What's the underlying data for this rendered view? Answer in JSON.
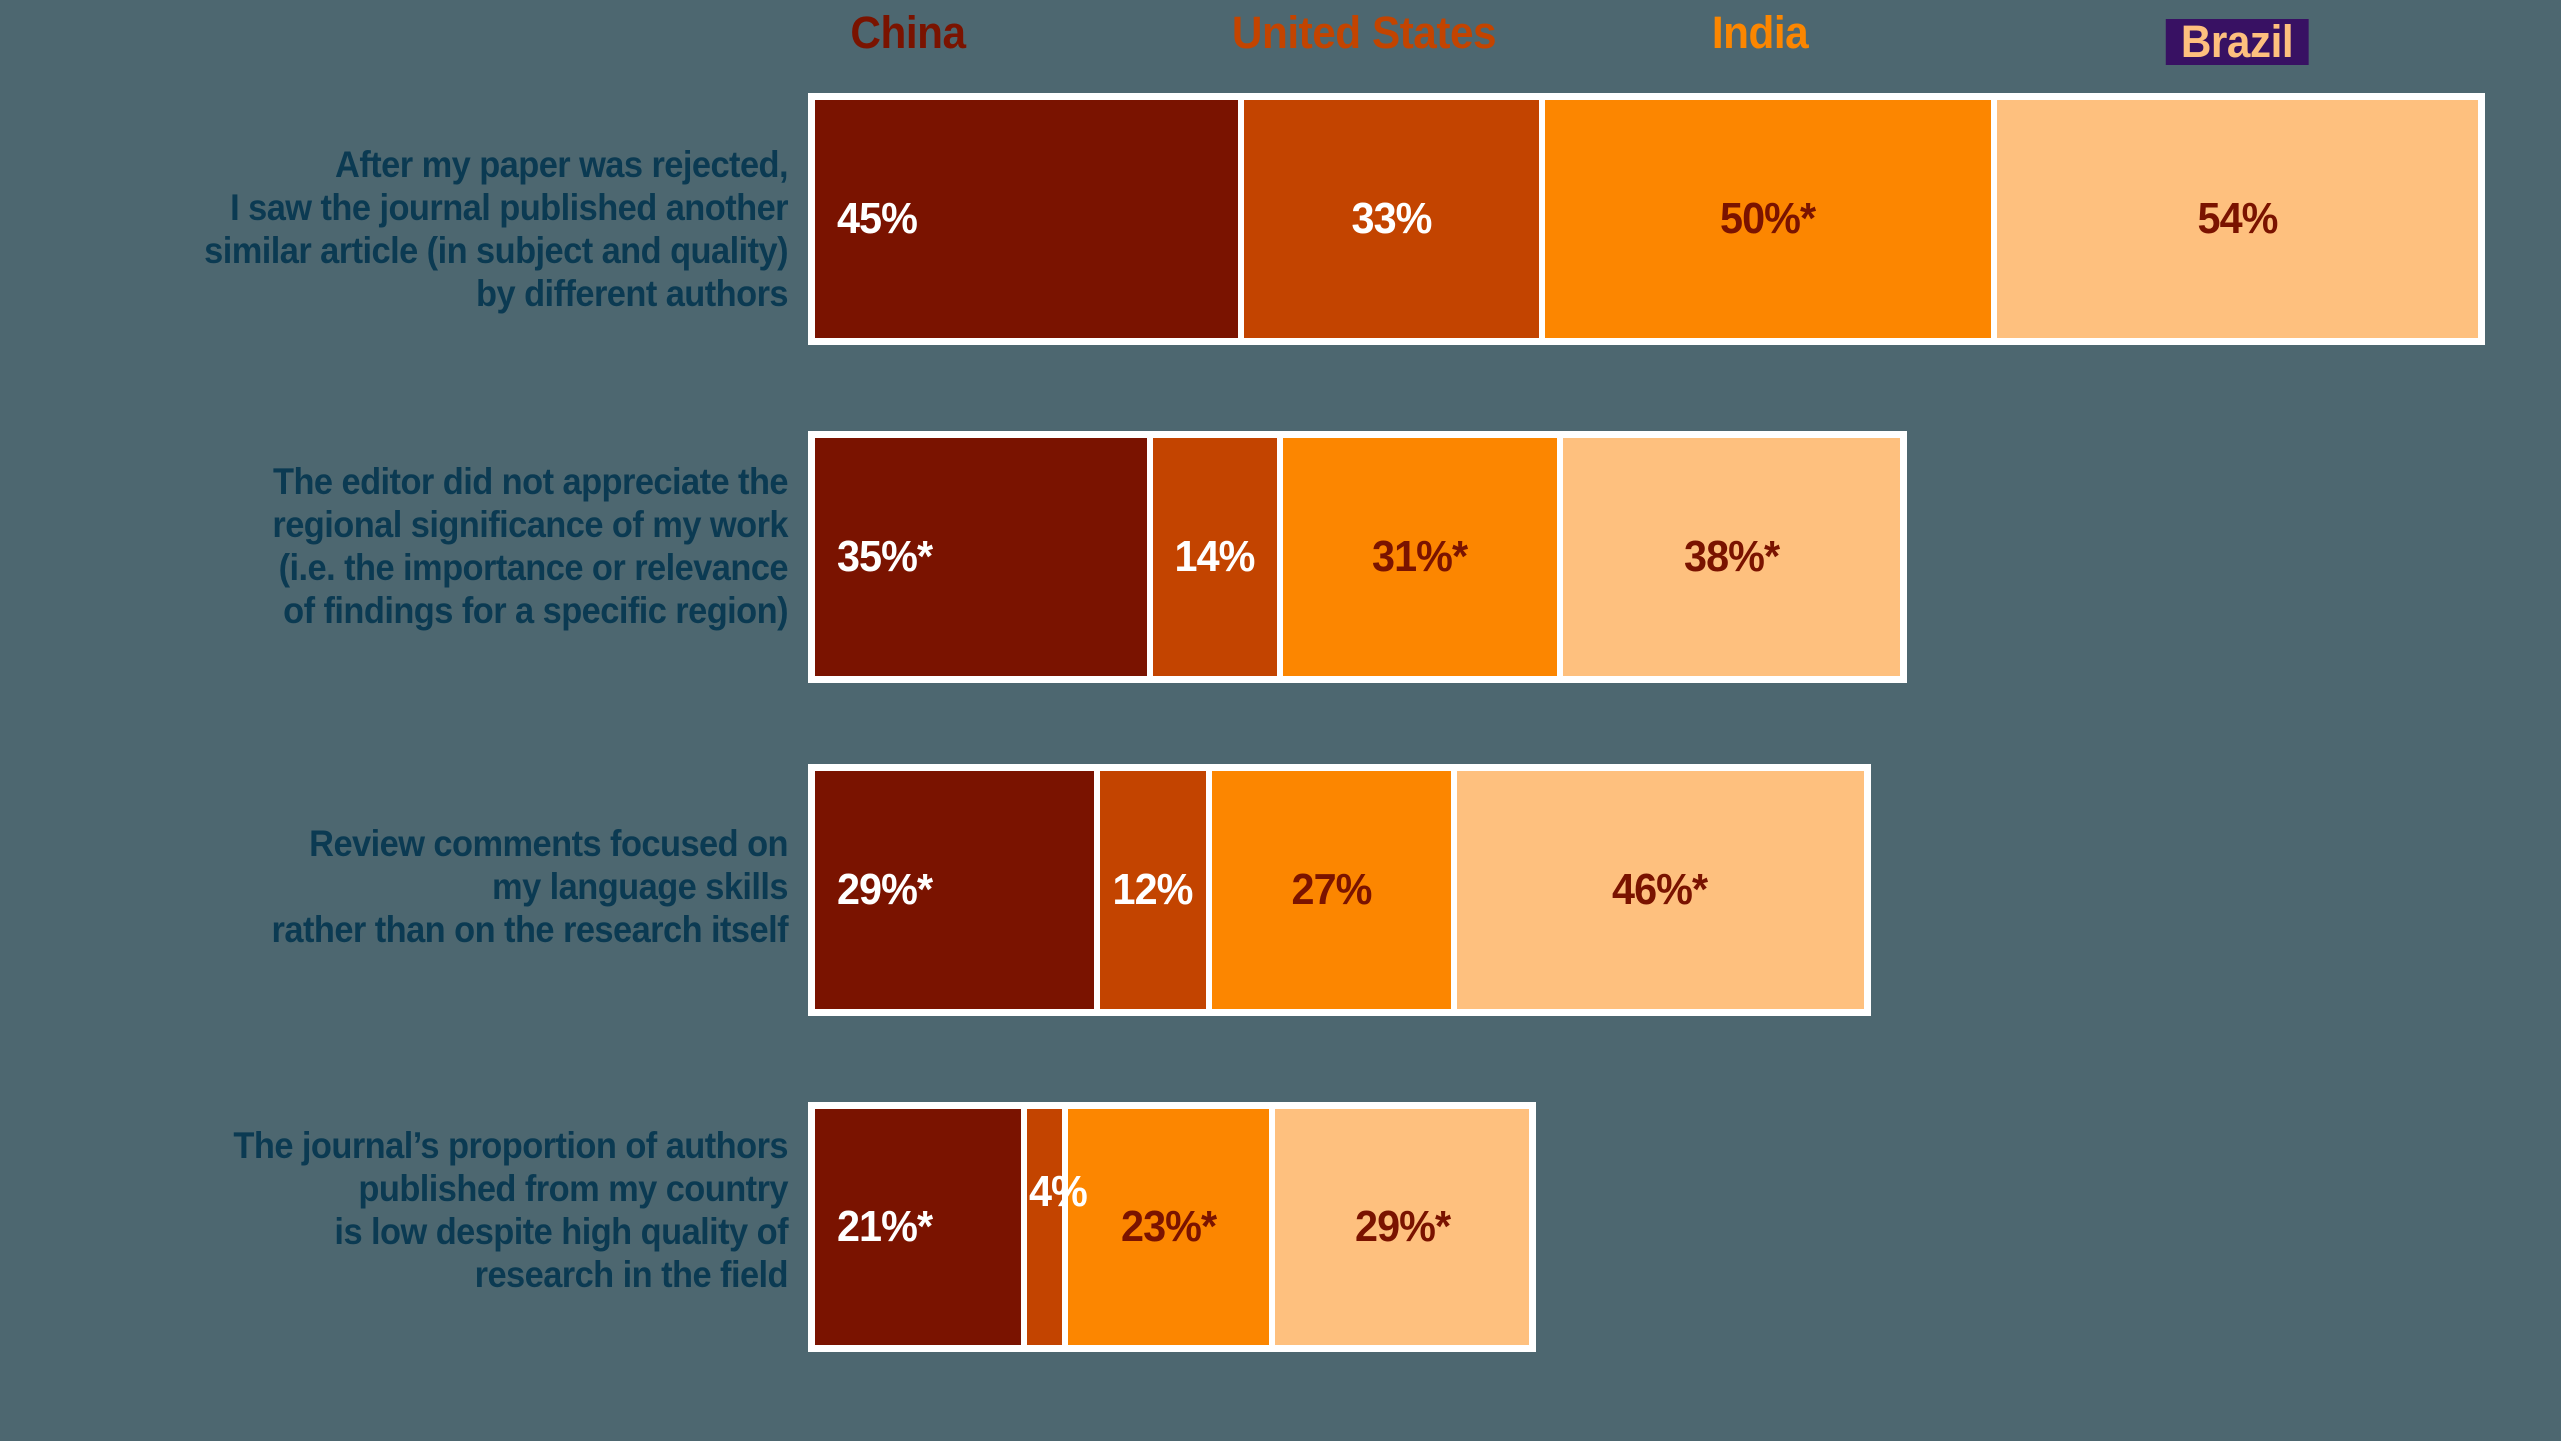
{
  "page": {
    "background_color": "#4d6770",
    "question_text_color": "#0b3a52"
  },
  "legend": {
    "position": "top",
    "items": [
      {
        "label": "China",
        "color": "#7a1300"
      },
      {
        "label": "United States",
        "color": "#c34400"
      },
      {
        "label": "India",
        "color": "#fc8600"
      },
      {
        "label": "Brazil",
        "color": "#fec07e",
        "highlight_bg": "#381163"
      }
    ]
  },
  "chart_data": {
    "type": "bar",
    "orientation": "horizontal-stacked",
    "title": "",
    "xlabel": "",
    "ylabel": "",
    "legend_position": "top",
    "grid": false,
    "value_unit": "%",
    "asterisk_in_labels": true,
    "categories": [
      "After my paper was rejected, I saw the journal published another similar article (in subject and quality) by different authors",
      "The editor did not appreciate the regional significance of my work (i.e. the importance or relevance of findings for a specific region)",
      "Review comments focused on my language skills rather than on the research itself",
      "The journal’s proportion of authors published from my country is low despite high quality of research in the field"
    ],
    "series": [
      {
        "name": "China",
        "color": "#7a1300",
        "value_text_color": "#ffffff",
        "values": [
          45,
          35,
          29,
          21
        ],
        "labels": [
          "45%",
          "35%*",
          "29%*",
          "21%*"
        ]
      },
      {
        "name": "United States",
        "color": "#c34400",
        "value_text_color": "#ffffff",
        "values": [
          33,
          14,
          12,
          4
        ],
        "labels": [
          "33%",
          "14%",
          "12%",
          "4%"
        ]
      },
      {
        "name": "India",
        "color": "#fc8600",
        "value_text_color": "#7a1300",
        "values": [
          50,
          31,
          27,
          23
        ],
        "labels": [
          "50%*",
          "31%*",
          "27%",
          "23%*"
        ]
      },
      {
        "name": "Brazil",
        "color": "#fec07e",
        "value_text_color": "#7a1300",
        "values": [
          54,
          38,
          46,
          29
        ],
        "labels": [
          "54%",
          "38%*",
          "46%*",
          "29%*"
        ]
      }
    ],
    "rows": [
      {
        "label_lines": [
          "After my paper was rejected,",
          "I saw the journal published another",
          "similar article (in subject and quality)",
          "by different authors"
        ],
        "total": 182,
        "segments": [
          {
            "country": "China",
            "value": 45,
            "display": "45%"
          },
          {
            "country": "United States",
            "value": 33,
            "display": "33%"
          },
          {
            "country": "India",
            "value": 50,
            "display": "50%*"
          },
          {
            "country": "Brazil",
            "value": 54,
            "display": "54%"
          }
        ]
      },
      {
        "label_lines": [
          "The editor did not appreciate the",
          "regional significance of my work",
          "(i.e. the importance or relevance",
          "of findings for a specific region)"
        ],
        "total": 118,
        "segments": [
          {
            "country": "China",
            "value": 35,
            "display": "35%*"
          },
          {
            "country": "United States",
            "value": 14,
            "display": "14%"
          },
          {
            "country": "India",
            "value": 31,
            "display": "31%*"
          },
          {
            "country": "Brazil",
            "value": 38,
            "display": "38%*"
          }
        ]
      },
      {
        "label_lines": [
          "Review comments focused on",
          "my language skills",
          "rather than on the research itself"
        ],
        "total": 114,
        "segments": [
          {
            "country": "China",
            "value": 29,
            "display": "29%*"
          },
          {
            "country": "United States",
            "value": 12,
            "display": "12%"
          },
          {
            "country": "India",
            "value": 27,
            "display": "27%"
          },
          {
            "country": "Brazil",
            "value": 46,
            "display": "46%*"
          }
        ]
      },
      {
        "label_lines": [
          "The journal’s proportion of authors",
          "published from my country",
          "is low despite high quality of",
          "research in the field"
        ],
        "total": 77,
        "segments": [
          {
            "country": "China",
            "value": 21,
            "display": "21%*"
          },
          {
            "country": "United States",
            "value": 4,
            "display": "4%"
          },
          {
            "country": "India",
            "value": 23,
            "display": "23%*"
          },
          {
            "country": "Brazil",
            "value": 29,
            "display": "29%*"
          }
        ]
      }
    ]
  }
}
